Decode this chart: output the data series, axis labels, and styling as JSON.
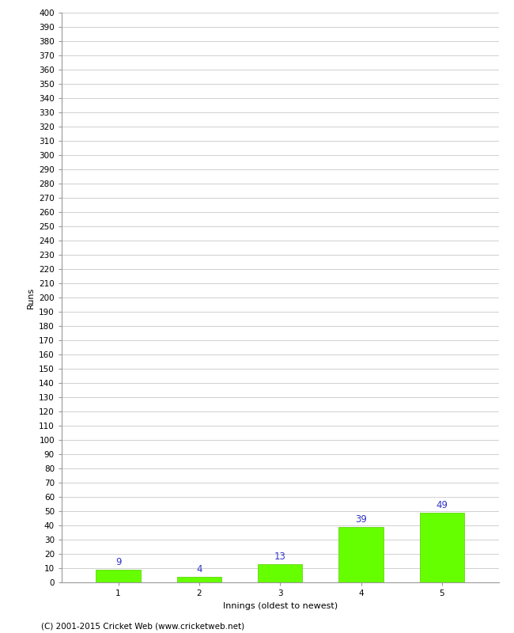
{
  "categories": [
    "1",
    "2",
    "3",
    "4",
    "5"
  ],
  "values": [
    9,
    4,
    13,
    39,
    49
  ],
  "bar_color": "#66ff00",
  "bar_edge_color": "#55cc00",
  "label_color": "#3333cc",
  "xlabel": "Innings (oldest to newest)",
  "ylabel": "Runs",
  "ylim": [
    0,
    400
  ],
  "ytick_step": 10,
  "background_color": "#ffffff",
  "grid_color": "#d0d0d0",
  "footer": "(C) 2001-2015 Cricket Web (www.cricketweb.net)",
  "bar_width": 0.55,
  "tick_fontsize": 7.5,
  "label_fontsize": 8,
  "value_label_fontsize": 8.5
}
